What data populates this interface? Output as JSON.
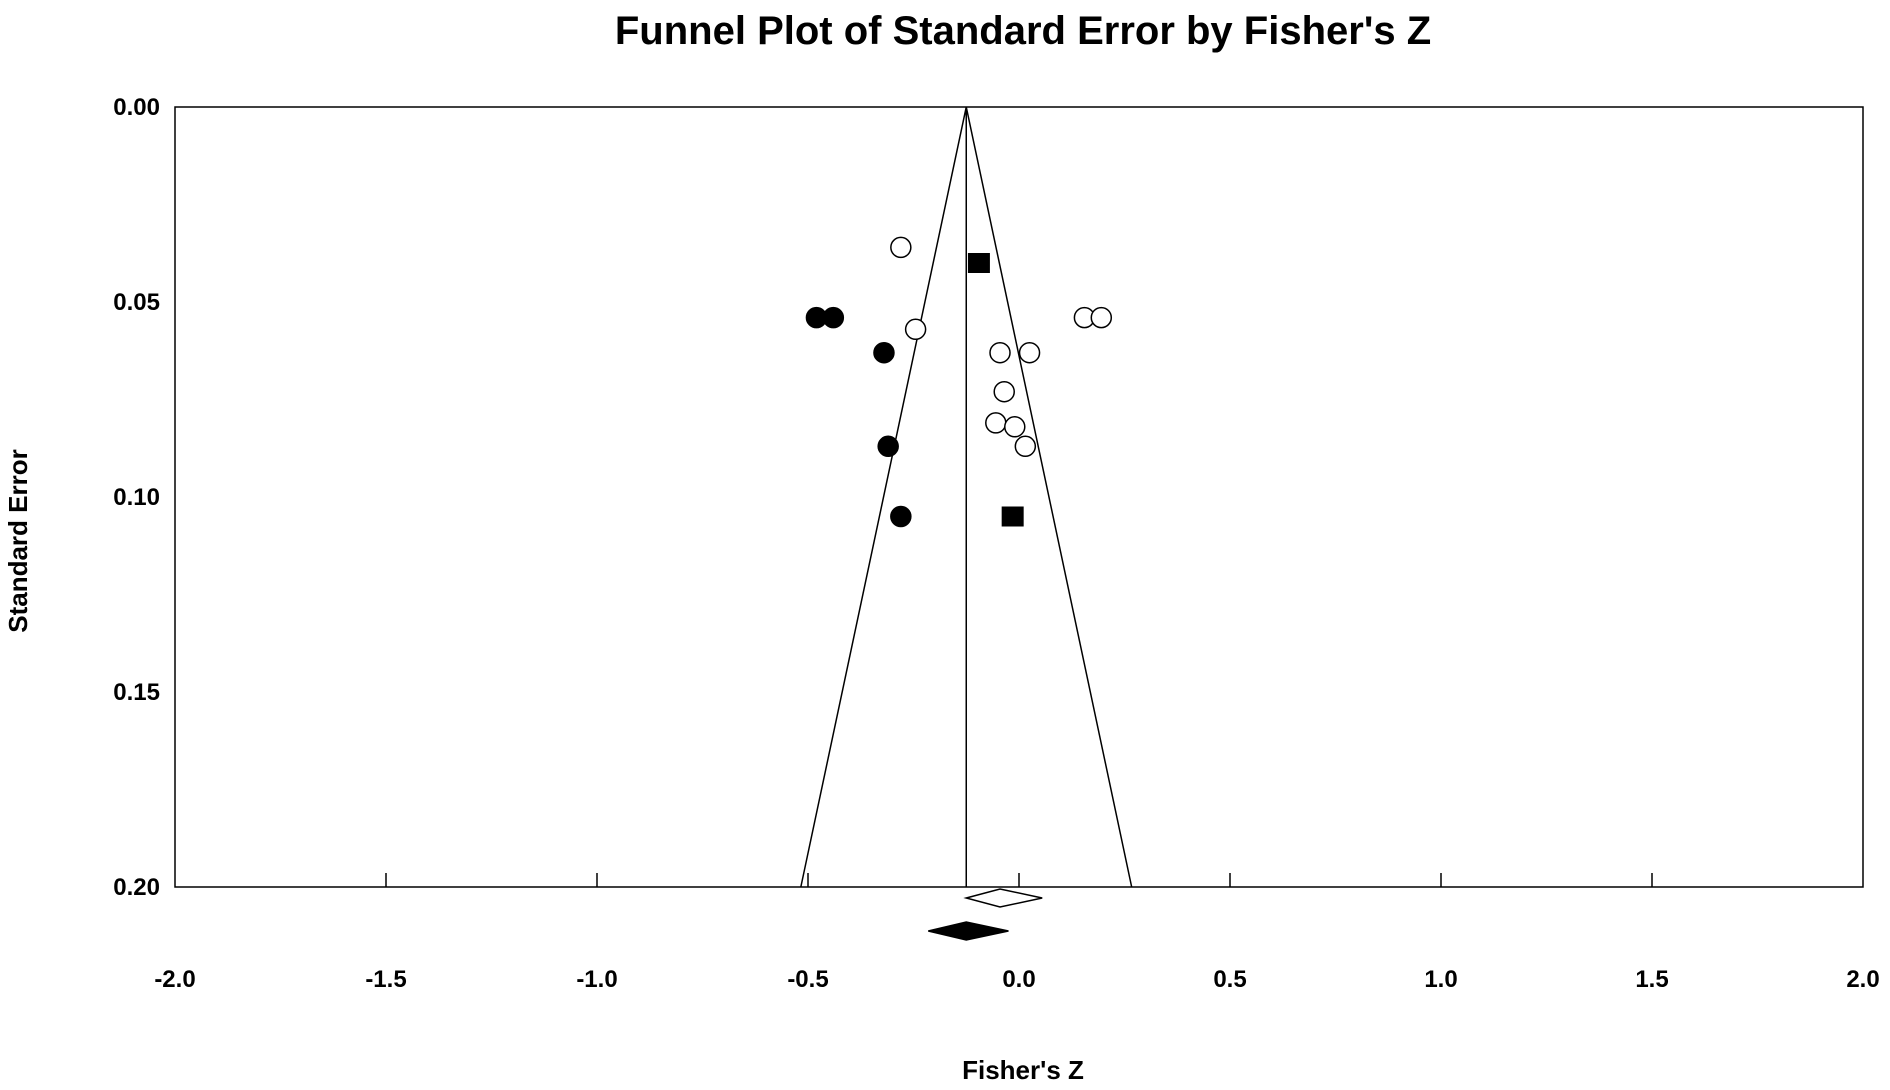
{
  "chart_data": {
    "type": "scatter",
    "title": "Funnel Plot of Standard Error by Fisher's Z",
    "xlabel": "Fisher's Z",
    "ylabel": "Standard Error",
    "xlim": [
      -2.0,
      2.0
    ],
    "ylim": [
      0.0,
      0.2
    ],
    "y_inverted": true,
    "grid": false,
    "legend": "none",
    "x_ticks": [
      "-2.0",
      "-1.5",
      "-1.0",
      "-0.5",
      "0.0",
      "0.5",
      "1.0",
      "1.5",
      "2.0"
    ],
    "y_ticks": [
      "0.00",
      "0.05",
      "0.10",
      "0.15",
      "0.20"
    ],
    "pooled_estimate": -0.125,
    "funnel_bounds_at_max_se": [
      -0.517,
      0.267
    ],
    "series": [
      {
        "marker": "open-circle",
        "points": [
          {
            "x": -0.28,
            "y": 0.036
          },
          {
            "x": -0.245,
            "y": 0.057
          },
          {
            "x": 0.155,
            "y": 0.054
          },
          {
            "x": 0.195,
            "y": 0.054
          },
          {
            "x": -0.045,
            "y": 0.063
          },
          {
            "x": 0.025,
            "y": 0.063
          },
          {
            "x": -0.035,
            "y": 0.073
          },
          {
            "x": -0.055,
            "y": 0.081
          },
          {
            "x": -0.01,
            "y": 0.082
          },
          {
            "x": 0.015,
            "y": 0.087
          }
        ]
      },
      {
        "marker": "filled-circle",
        "points": [
          {
            "x": -0.48,
            "y": 0.054
          },
          {
            "x": -0.44,
            "y": 0.054
          },
          {
            "x": -0.32,
            "y": 0.063
          },
          {
            "x": -0.31,
            "y": 0.087
          },
          {
            "x": -0.28,
            "y": 0.105
          }
        ]
      },
      {
        "marker": "filled-square",
        "points": [
          {
            "x": -0.095,
            "y": 0.04
          },
          {
            "x": -0.015,
            "y": 0.105
          }
        ]
      }
    ],
    "summary_diamonds": [
      {
        "style": "open",
        "center": -0.045,
        "low": -0.125,
        "high": 0.055
      },
      {
        "style": "filled",
        "center": -0.125,
        "low": -0.215,
        "high": -0.025
      }
    ]
  }
}
